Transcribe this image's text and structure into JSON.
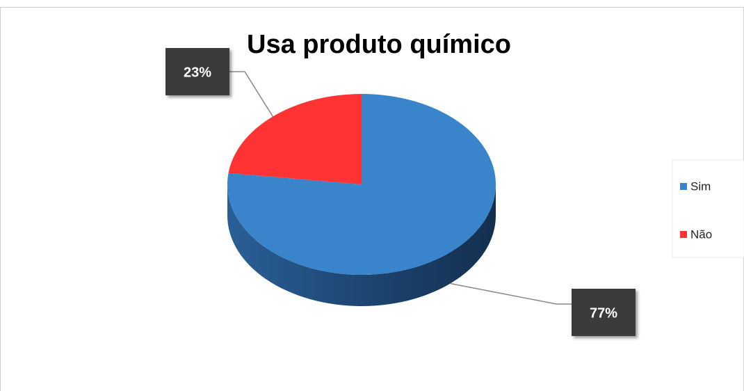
{
  "chart_data": {
    "type": "pie",
    "title": "Usa produto químico",
    "categories": [
      "Sim",
      "Não"
    ],
    "values": [
      77,
      23
    ],
    "value_labels": [
      "77%",
      "23%"
    ],
    "series": [
      {
        "name": "Sim",
        "color": "#3a84cc"
      },
      {
        "name": "Não",
        "color": "#ff3333"
      }
    ],
    "legend": "right"
  }
}
